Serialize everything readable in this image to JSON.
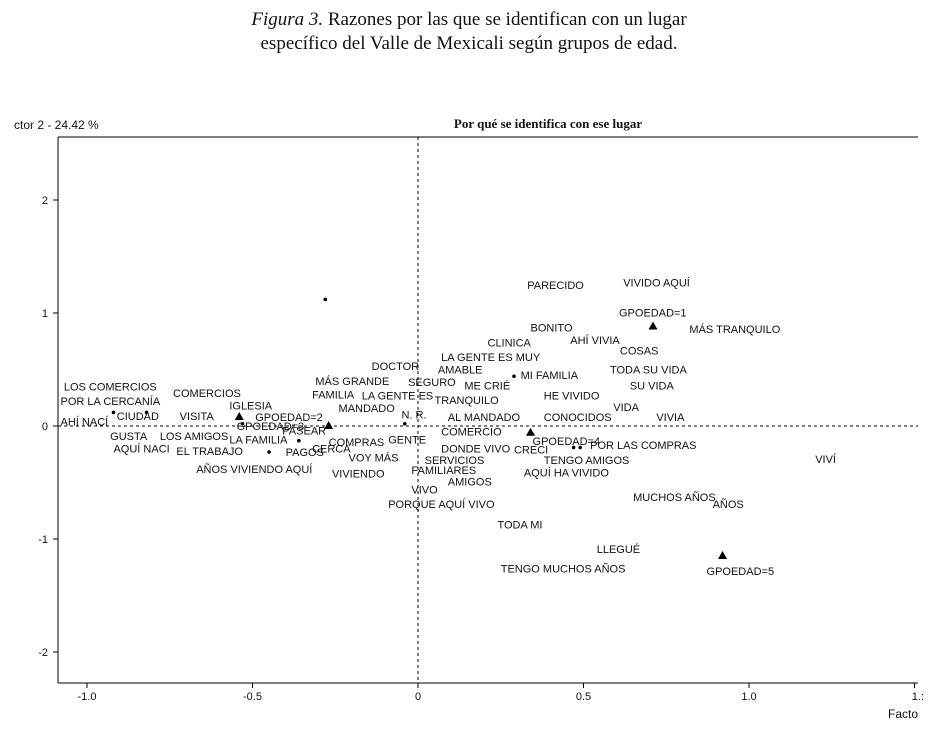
{
  "caption": {
    "figure_label": "Figura 3.",
    "line1_text": "Razones por las que se identifican con un lugar",
    "line2_text": "específico del Valle de Mexicali según grupos de edad."
  },
  "chart_data": {
    "type": "scatter",
    "title": "Por qué se identifica con ese lugar",
    "ylabel": "ctor 2  -  24.42 %",
    "xlabel": "Facto",
    "xlim": [
      -1.1,
      1.5
    ],
    "ylim": [
      -2.25,
      2.5
    ],
    "xticks": [
      {
        "v": -1.0,
        "label": "-1.0"
      },
      {
        "v": -0.5,
        "label": "-0.5"
      },
      {
        "v": 0.0,
        "label": "0"
      },
      {
        "v": 0.5,
        "label": "0.5"
      },
      {
        "v": 1.0,
        "label": "1.0"
      },
      {
        "v": 1.5,
        "label": "1.:"
      }
    ],
    "yticks": [
      {
        "v": 2,
        "label": "2"
      },
      {
        "v": 1,
        "label": "1"
      },
      {
        "v": 0,
        "label": "0"
      },
      {
        "v": -1,
        "label": "-1"
      },
      {
        "v": -2,
        "label": "-2"
      }
    ],
    "groups": [
      {
        "label": "GPOEDAD=1",
        "x": 0.71,
        "y": 0.88
      },
      {
        "label": "GPOEDAD=2",
        "x": -0.54,
        "y": 0.08
      },
      {
        "label": "GPOEDAD=3",
        "x": -0.27,
        "y": 0.0
      },
      {
        "label": "GPOEDAD=4",
        "x": 0.34,
        "y": -0.06
      },
      {
        "label": "GPOEDAD=5",
        "x": 0.92,
        "y": -1.15
      }
    ],
    "points": [
      {
        "label": "PARECIDO",
        "x": 0.33,
        "y": 1.25
      },
      {
        "label": "VIVIDO AQUÍ",
        "x": 0.62,
        "y": 1.27
      },
      {
        "label": "BONITO",
        "x": 0.34,
        "y": 0.87
      },
      {
        "label": "MÁS TRANQUILO",
        "x": 0.82,
        "y": 0.86
      },
      {
        "label": "AHÍ VIVIA",
        "x": 0.46,
        "y": 0.76
      },
      {
        "label": "CLINICA",
        "x": 0.21,
        "y": 0.74
      },
      {
        "label": "COSAS",
        "x": 0.61,
        "y": 0.67
      },
      {
        "label": "LA GENTE ES MUY",
        "x": 0.07,
        "y": 0.61
      },
      {
        "label": "DOCTOR",
        "x": -0.14,
        "y": 0.53
      },
      {
        "label": "AMABLE",
        "x": 0.06,
        "y": 0.5
      },
      {
        "label": "TODA SU VIDA",
        "x": 0.58,
        "y": 0.5
      },
      {
        "label": "MI FAMILIA",
        "x": 0.31,
        "y": 0.45
      },
      {
        "label": "MÁS GRANDE",
        "x": -0.31,
        "y": 0.4
      },
      {
        "label": "SEGURO",
        "x": -0.03,
        "y": 0.39
      },
      {
        "label": "ME CRIÉ",
        "x": 0.14,
        "y": 0.36
      },
      {
        "label": "SU VIDA",
        "x": 0.64,
        "y": 0.36
      },
      {
        "label": "LOS COMERCIOS",
        "x": -1.07,
        "y": 0.35
      },
      {
        "label": "COMERCIOS",
        "x": -0.74,
        "y": 0.29
      },
      {
        "label": "FAMILIA",
        "x": -0.32,
        "y": 0.28
      },
      {
        "label": "LA GENTE ES",
        "x": -0.17,
        "y": 0.27
      },
      {
        "label": "HE VIVIDO",
        "x": 0.38,
        "y": 0.27
      },
      {
        "label": "TRANQUILO",
        "x": 0.05,
        "y": 0.23
      },
      {
        "label": "POR LA CERCANÍA",
        "x": -1.08,
        "y": 0.22
      },
      {
        "label": "IGLESIA",
        "x": -0.57,
        "y": 0.18
      },
      {
        "label": "MANDADO",
        "x": -0.24,
        "y": 0.16
      },
      {
        "label": "VIDA",
        "x": 0.59,
        "y": 0.17
      },
      {
        "label": "CIUDAD",
        "x": -0.91,
        "y": 0.09
      },
      {
        "label": "VISITA",
        "x": -0.72,
        "y": 0.09
      },
      {
        "label": "N. R.",
        "x": -0.05,
        "y": 0.1
      },
      {
        "label": "AL MANDADO",
        "x": 0.09,
        "y": 0.08
      },
      {
        "label": "CONOCIDOS",
        "x": 0.38,
        "y": 0.08
      },
      {
        "label": "VIVIA",
        "x": 0.72,
        "y": 0.08
      },
      {
        "label": "AHÍ NACÍ",
        "x": -1.08,
        "y": 0.04
      },
      {
        "label": "PASEAR",
        "x": -0.41,
        "y": -0.04
      },
      {
        "label": "COMERCIO",
        "x": 0.07,
        "y": -0.05
      },
      {
        "label": "GUSTA",
        "x": -0.93,
        "y": -0.09
      },
      {
        "label": "LOS AMIGOS",
        "x": -0.78,
        "y": -0.09
      },
      {
        "label": "LA FAMILIA",
        "x": -0.57,
        "y": -0.12
      },
      {
        "label": "GENTE",
        "x": -0.09,
        "y": -0.12
      },
      {
        "label": "COMPRAS",
        "x": -0.27,
        "y": -0.14
      },
      {
        "label": "CERCA",
        "x": -0.32,
        "y": -0.2
      },
      {
        "label": "POR LAS COMPRAS",
        "x": 0.52,
        "y": -0.17
      },
      {
        "label": "AQUÍ NACI",
        "x": -0.92,
        "y": -0.2
      },
      {
        "label": "EL TRABAJO",
        "x": -0.73,
        "y": -0.22
      },
      {
        "label": "DONDE VIVO",
        "x": 0.07,
        "y": -0.2
      },
      {
        "label": "CRECI",
        "x": 0.29,
        "y": -0.21
      },
      {
        "label": "PAGOS",
        "x": -0.4,
        "y": -0.23
      },
      {
        "label": "VOY MÁS",
        "x": -0.21,
        "y": -0.28
      },
      {
        "label": "SERVICIOS",
        "x": 0.02,
        "y": -0.3
      },
      {
        "label": "TENGO AMIGOS",
        "x": 0.38,
        "y": -0.3
      },
      {
        "label": "VIVÍ",
        "x": 1.2,
        "y": -0.29
      },
      {
        "label": "AÑOS VIVIENDO AQUÍ",
        "x": -0.67,
        "y": -0.38
      },
      {
        "label": "FAMILIARES",
        "x": -0.02,
        "y": -0.39
      },
      {
        "label": "VIVIENDO",
        "x": -0.26,
        "y": -0.42
      },
      {
        "label": "AQUÍ HA VIVIDO",
        "x": 0.32,
        "y": -0.41
      },
      {
        "label": "AMIGOS",
        "x": 0.09,
        "y": -0.49
      },
      {
        "label": "VIVO",
        "x": -0.02,
        "y": -0.56
      },
      {
        "label": "MUCHOS AÑOS",
        "x": 0.65,
        "y": -0.63
      },
      {
        "label": "AÑOS",
        "x": 0.89,
        "y": -0.69
      },
      {
        "label": "PORQUE AQUÍ VIVO",
        "x": -0.09,
        "y": -0.69
      },
      {
        "label": "TODA MI",
        "x": 0.24,
        "y": -0.87
      },
      {
        "label": "LLEGUÉ",
        "x": 0.54,
        "y": -1.09
      },
      {
        "label": "TENGO MUCHOS AÑOS",
        "x": 0.25,
        "y": -1.26
      }
    ],
    "markers": [
      {
        "x": -0.92,
        "y": 0.12
      },
      {
        "x": -0.82,
        "y": 0.12
      },
      {
        "x": -0.53,
        "y": 0.02
      },
      {
        "x": -0.45,
        "y": -0.23
      },
      {
        "x": -0.36,
        "y": -0.13
      },
      {
        "x": -0.04,
        "y": 0.02
      },
      {
        "x": 0.29,
        "y": 0.44
      },
      {
        "x": 0.47,
        "y": -0.19
      },
      {
        "x": 0.49,
        "y": -0.19
      },
      {
        "x": -0.28,
        "y": 1.12
      }
    ]
  }
}
